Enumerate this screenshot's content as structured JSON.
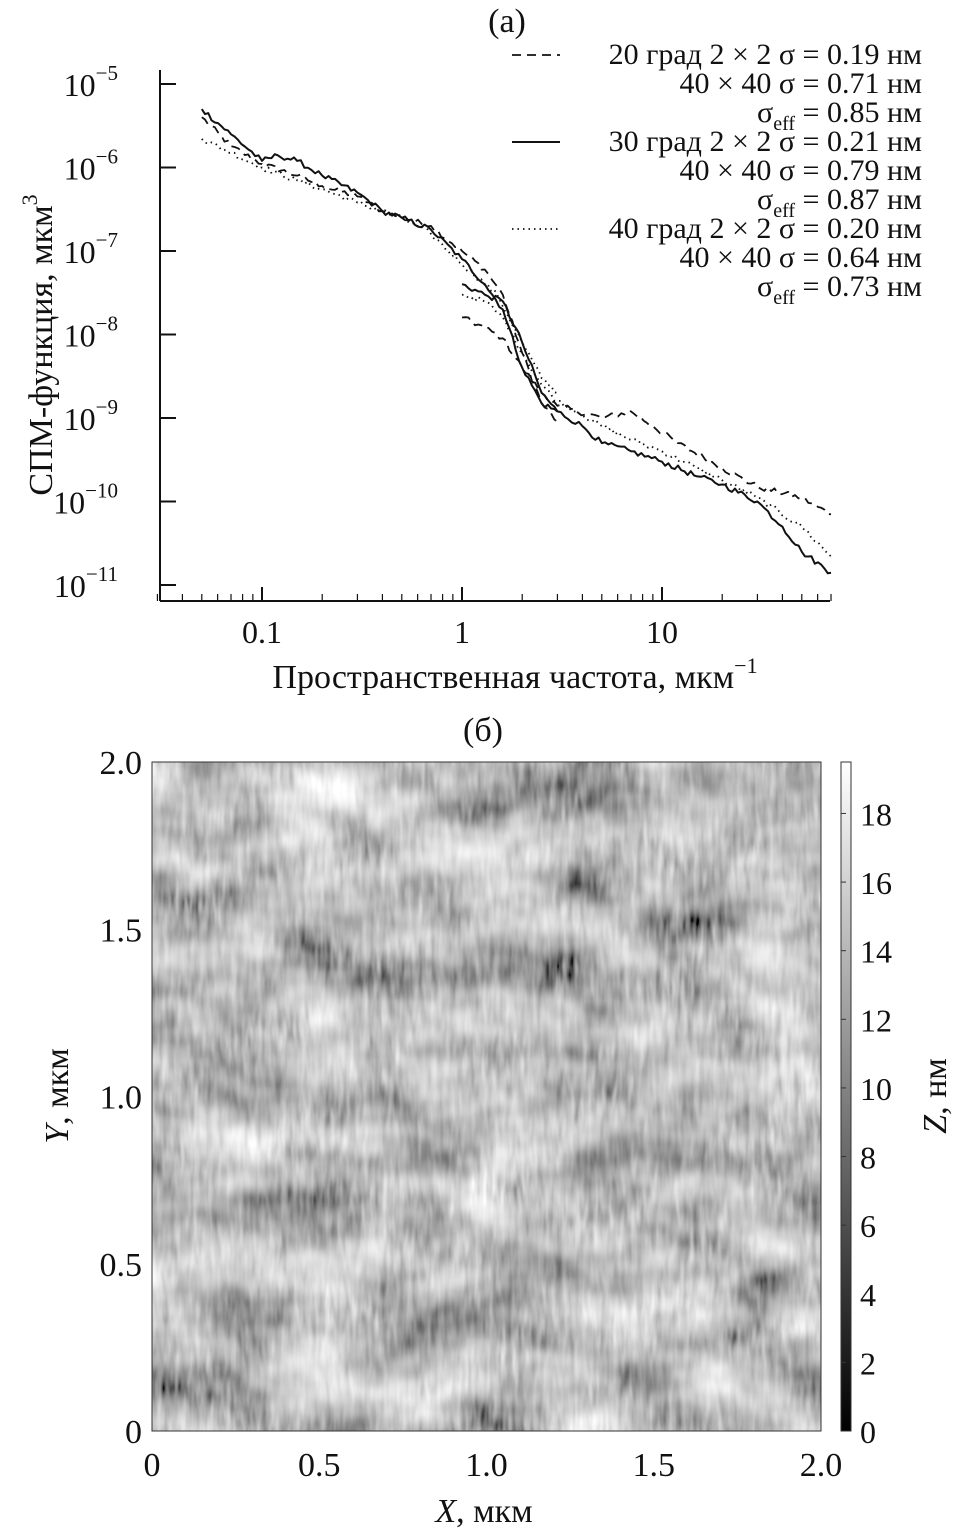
{
  "chart_data": [
    {
      "type": "line",
      "panel_label": "(а)",
      "xlabel": "Пространственная частота, мкм",
      "xlabel_sup": "−1",
      "ylabel": "СПМ-функция, мкм",
      "ylabel_sup": "3",
      "xscale": "log",
      "yscale": "log",
      "xlim": [
        0.03,
        70
      ],
      "ylim": [
        5e-12,
        2e-05
      ],
      "x_ticks": [
        {
          "value": 0.1,
          "label": "0.1"
        },
        {
          "value": 1,
          "label": "1"
        },
        {
          "value": 10,
          "label": "10"
        }
      ],
      "y_ticks": [
        {
          "value": 1e-05,
          "base": "10",
          "exp": "−5"
        },
        {
          "value": 1e-06,
          "base": "10",
          "exp": "−6"
        },
        {
          "value": 1e-07,
          "base": "10",
          "exp": "−7"
        },
        {
          "value": 1e-08,
          "base": "10",
          "exp": "−8"
        },
        {
          "value": 1e-09,
          "base": "10",
          "exp": "−9"
        },
        {
          "value": 1e-10,
          "base": "10",
          "exp": "−10"
        },
        {
          "value": 1e-11,
          "base": "10",
          "exp": "−11"
        }
      ],
      "grid": false,
      "legend_position": "top-right",
      "legend": [
        {
          "style": "dashed",
          "lines": [
            {
              "main": "20 град 2 × 2 σ = 0.19 нм"
            },
            {
              "main": "40 × 40 σ = 0.71 нм"
            },
            {
              "sym": "σ",
              "sub": "eff",
              "rest": " = 0.85 нм"
            }
          ]
        },
        {
          "style": "solid",
          "lines": [
            {
              "main": "30 град 2 × 2 σ = 0.21 нм"
            },
            {
              "main": "40 × 40 σ = 0.79 нм"
            },
            {
              "sym": "σ",
              "sub": "eff",
              "rest": " = 0.87 нм"
            }
          ]
        },
        {
          "style": "dotted",
          "lines": [
            {
              "main": "40 град 2 × 2 σ = 0.20 нм"
            },
            {
              "main": "40 × 40 σ = 0.64 нм"
            },
            {
              "sym": "σ",
              "sub": "eff",
              "rest": " = 0.73 нм"
            }
          ]
        }
      ],
      "series": [
        {
          "style": "dashed",
          "segments": [
            {
              "x": [
                0.05,
                0.07,
                0.1,
                0.15,
                0.2,
                0.3,
                0.4,
                0.5,
                0.7,
                1.0,
                1.3,
                1.6,
                2.0,
                2.5,
                3.0
              ],
              "y": [
                4e-06,
                1.8e-06,
                1.1e-06,
                8e-07,
                6e-07,
                4.5e-07,
                3e-07,
                2.5e-07,
                2e-07,
                1e-07,
                6e-08,
                3e-08,
                6e-09,
                1.5e-09,
                9e-10
              ]
            },
            {
              "x": [
                1.0,
                1.3,
                1.6,
                2.0,
                2.5,
                3.0,
                5.0,
                7.0,
                9.0,
                12.0,
                20.0,
                30.0,
                50.0,
                70.0
              ],
              "y": [
                1.6e-08,
                1.2e-08,
                9e-09,
                4e-09,
                2e-09,
                1.4e-09,
                1e-09,
                1.2e-09,
                8e-10,
                5e-10,
                2.5e-10,
                1.5e-10,
                1.1e-10,
                7e-11
              ]
            }
          ]
        },
        {
          "style": "solid",
          "segments": [
            {
              "x": [
                0.05,
                0.07,
                0.1,
                0.12,
                0.15,
                0.2,
                0.3,
                0.4,
                0.5,
                0.7,
                1.0,
                1.3,
                1.6,
                2.0,
                2.5,
                3.0
              ],
              "y": [
                5e-06,
                2.5e-06,
                1.2e-06,
                1.4e-06,
                1.2e-06,
                8e-07,
                5e-07,
                3e-07,
                2.5e-07,
                1.8e-07,
                8e-08,
                4e-08,
                2e-08,
                4e-09,
                1.5e-09,
                1.2e-09
              ]
            },
            {
              "x": [
                1.0,
                1.3,
                1.6,
                2.0,
                2.5,
                3.0,
                4.0,
                5.0,
                7.0,
                10.0,
                15.0,
                20.0,
                30.0,
                40.0,
                50.0,
                70.0
              ],
              "y": [
                4e-08,
                3e-08,
                2.5e-08,
                8e-09,
                2e-09,
                1.2e-09,
                8e-10,
                5e-10,
                4e-10,
                3e-10,
                2e-10,
                1.6e-10,
                1e-10,
                5e-11,
                2.5e-11,
                1.4e-11
              ]
            }
          ]
        },
        {
          "style": "dotted",
          "segments": [
            {
              "x": [
                0.05,
                0.07,
                0.1,
                0.15,
                0.2,
                0.3,
                0.5,
                0.7,
                1.0,
                1.5,
                2.0,
                2.5,
                3.0
              ],
              "y": [
                2.2e-06,
                1.5e-06,
                1e-06,
                7e-07,
                5.5e-07,
                3.8e-07,
                2.5e-07,
                1.6e-07,
                7e-08,
                3e-08,
                8e-09,
                3e-09,
                2e-09
              ]
            },
            {
              "x": [
                1.0,
                1.3,
                1.6,
                2.0,
                2.5,
                3.0,
                4.0,
                5.0,
                7.0,
                10.0,
                15.0,
                20.0,
                30.0,
                50.0,
                70.0
              ],
              "y": [
                3e-08,
                2.5e-08,
                1.6e-08,
                6e-09,
                2.5e-09,
                1.6e-09,
                1.1e-09,
                8e-10,
                5.5e-10,
                4e-10,
                2.5e-10,
                1.8e-10,
                1.1e-10,
                5e-11,
                2.2e-11
              ]
            }
          ]
        }
      ]
    },
    {
      "type": "heatmap",
      "panel_label": "(б)",
      "xlabel_var": "X",
      "xlabel_unit": ", мкм",
      "ylabel_var": "Y",
      "ylabel_unit": ", мкм",
      "xlim": [
        0,
        2.0
      ],
      "ylim": [
        0,
        2.0
      ],
      "x_ticks": [
        {
          "value": 0,
          "label": "0"
        },
        {
          "value": 0.5,
          "label": "0.5"
        },
        {
          "value": 1.0,
          "label": "1.0"
        },
        {
          "value": 1.5,
          "label": "1.5"
        },
        {
          "value": 2.0,
          "label": "2.0"
        }
      ],
      "y_ticks": [
        {
          "value": 0,
          "label": "0"
        },
        {
          "value": 0.5,
          "label": "0.5"
        },
        {
          "value": 1.0,
          "label": "1.0"
        },
        {
          "value": 1.5,
          "label": "1.5"
        },
        {
          "value": 2.0,
          "label": "2.0"
        }
      ],
      "colorbar": {
        "label_var": "Z",
        "label_unit": ", нм",
        "range": [
          0,
          19.5
        ],
        "colormap": "grayscale",
        "ticks": [
          {
            "value": 0,
            "label": "0"
          },
          {
            "value": 2,
            "label": "2"
          },
          {
            "value": 4,
            "label": "4"
          },
          {
            "value": 6,
            "label": "6"
          },
          {
            "value": 8,
            "label": "8"
          },
          {
            "value": 10,
            "label": "10"
          },
          {
            "value": 12,
            "label": "12"
          },
          {
            "value": 14,
            "label": "14"
          },
          {
            "value": 16,
            "label": "16"
          },
          {
            "value": 18,
            "label": "18"
          }
        ]
      }
    }
  ]
}
